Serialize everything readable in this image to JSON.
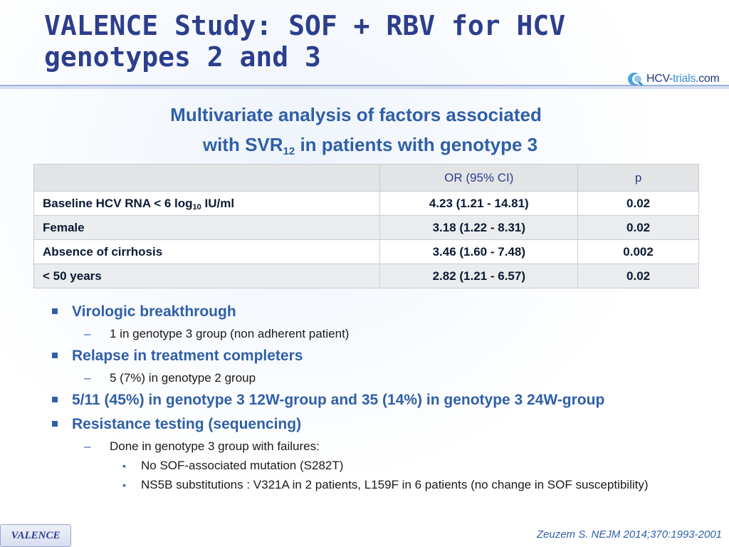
{
  "slide": {
    "title_line1": "VALENCE Study: SOF + RBV for HCV",
    "title_line2": "genotypes 2 and 3",
    "logo": {
      "part1": "HCV-",
      "part2": "trials",
      "part3": ".com",
      "icon": "hcv-trials-logo-icon"
    },
    "subtitle": {
      "line1": "Multivariate analysis of factors associated",
      "line2_pre": "with SVR",
      "line2_sub": "12",
      "line2_post": " in patients with genotype 3"
    }
  },
  "table": {
    "headers": {
      "factor": "",
      "or": "OR (95% CI)",
      "p": "p"
    },
    "rows": [
      {
        "label_pre": "Baseline HCV RNA < 6 log",
        "label_sub": "10",
        "label_post": " IU/ml",
        "or": "4.23 (1.21 - 14.81)",
        "p": "0.02"
      },
      {
        "label_pre": "Female",
        "label_sub": "",
        "label_post": "",
        "or": "3.18 (1.22 - 8.31)",
        "p": "0.02"
      },
      {
        "label_pre": "Absence of cirrhosis",
        "label_sub": "",
        "label_post": "",
        "or": "3.46 (1.60 - 7.48)",
        "p": "0.002"
      },
      {
        "label_pre": "< 50 years",
        "label_sub": "",
        "label_post": "",
        "or": "2.82 (1.21 - 6.57)",
        "p": "0.02"
      }
    ]
  },
  "bullets": {
    "b1": {
      "text": "Virologic breakthrough",
      "sub1": "1 in genotype 3 group (non adherent patient)"
    },
    "b2": {
      "text": "Relapse in treatment completers",
      "sub1": "5 (7%) in genotype 2 group"
    },
    "b3": {
      "text": "5/11 (45%) in genotype 3 12W-group and 35 (14%) in genotype 3 24W-group"
    },
    "b4": {
      "text": "Resistance testing (sequencing)",
      "sub1": "Done in genotype 3 group with failures:",
      "subsub1": "No SOF-associated mutation (S282T)",
      "subsub2": "NS5B substitutions : V321A in 2 patients, L159F in 6 patients (no change in SOF susceptibility)"
    },
    "dash_glyph": "–",
    "dot_glyph": "•"
  },
  "footer": {
    "badge": "VALENCE",
    "citation": "Zeuzem S. NEJM 2014;370:1993-2001"
  }
}
